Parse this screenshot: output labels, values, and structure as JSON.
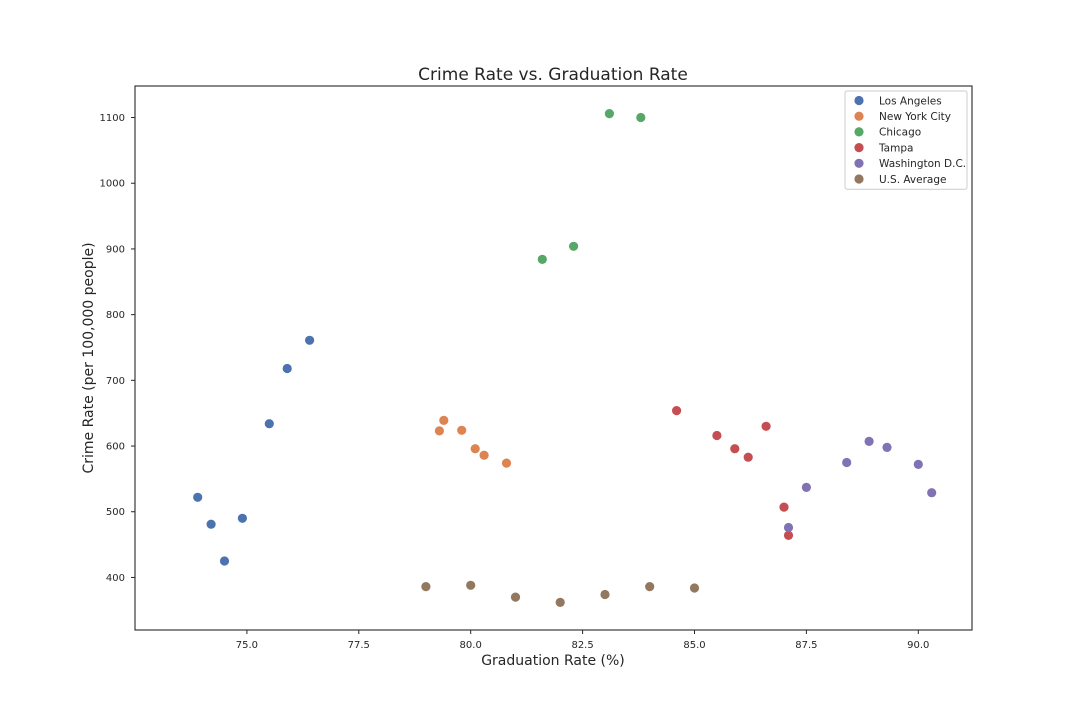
{
  "chart_data": {
    "type": "scatter",
    "title": "Crime Rate vs. Graduation Rate",
    "xlabel": "Graduation Rate (%)",
    "ylabel": "Crime Rate (per 100,000 people)",
    "xlim": [
      72.5,
      91.2
    ],
    "ylim": [
      320,
      1148
    ],
    "xticks": [
      "75.0",
      "77.5",
      "80.0",
      "82.5",
      "85.0",
      "87.5",
      "90.0"
    ],
    "yticks": [
      "400",
      "500",
      "600",
      "700",
      "800",
      "900",
      "1000",
      "1100"
    ],
    "grid": false,
    "legend_position": "top-right",
    "series": [
      {
        "name": "Los Angeles",
        "color": "#4c72b0",
        "points": [
          [
            73.9,
            522
          ],
          [
            74.2,
            481
          ],
          [
            74.5,
            425
          ],
          [
            74.9,
            490
          ],
          [
            75.5,
            634
          ],
          [
            75.9,
            718
          ],
          [
            76.4,
            761
          ]
        ]
      },
      {
        "name": "New York City",
        "color": "#dd8452",
        "points": [
          [
            79.3,
            623
          ],
          [
            79.4,
            639
          ],
          [
            79.8,
            624
          ],
          [
            80.1,
            596
          ],
          [
            80.3,
            586
          ],
          [
            80.8,
            574
          ]
        ]
      },
      {
        "name": "Chicago",
        "color": "#55a868",
        "points": [
          [
            81.6,
            884
          ],
          [
            82.3,
            904
          ],
          [
            83.1,
            1106
          ],
          [
            83.8,
            1100
          ]
        ]
      },
      {
        "name": "Tampa",
        "color": "#c44e52",
        "points": [
          [
            84.6,
            654
          ],
          [
            85.5,
            616
          ],
          [
            85.9,
            596
          ],
          [
            86.2,
            583
          ],
          [
            86.6,
            630
          ],
          [
            87.0,
            507
          ],
          [
            87.1,
            464
          ]
        ]
      },
      {
        "name": "Washington D.C.",
        "color": "#8172b3",
        "points": [
          [
            87.1,
            476
          ],
          [
            87.5,
            537
          ],
          [
            88.4,
            575
          ],
          [
            88.9,
            607
          ],
          [
            89.3,
            598
          ],
          [
            90.0,
            572
          ],
          [
            90.3,
            529
          ]
        ]
      },
      {
        "name": "U.S. Average",
        "color": "#937860",
        "points": [
          [
            79.0,
            386
          ],
          [
            80.0,
            388
          ],
          [
            81.0,
            370
          ],
          [
            82.0,
            362
          ],
          [
            83.0,
            374
          ],
          [
            84.0,
            386
          ],
          [
            85.0,
            384
          ]
        ]
      }
    ]
  }
}
